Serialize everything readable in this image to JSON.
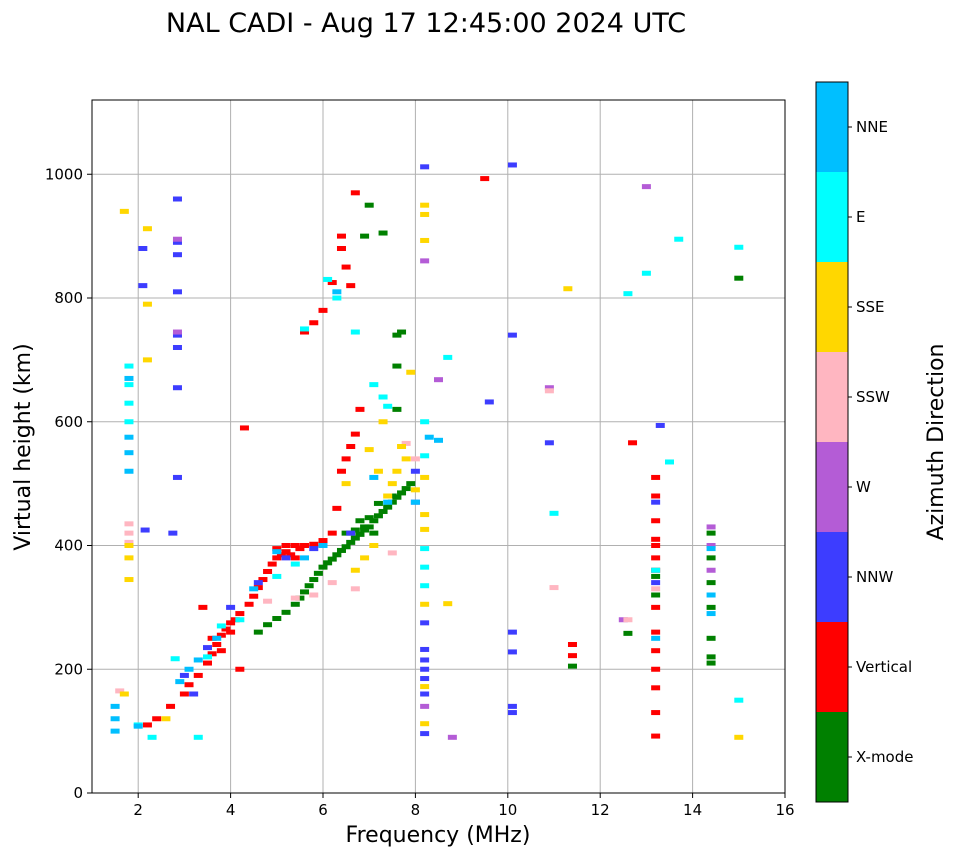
{
  "chart_data": {
    "type": "scatter",
    "title": "NAL CADI - Aug 17 12:45:00 2024 UTC",
    "xlabel": "Frequency (MHz)",
    "ylabel": "Virtual height (km)",
    "xlim": [
      1,
      16
    ],
    "ylim": [
      0,
      1120
    ],
    "xticks": [
      2,
      4,
      6,
      8,
      10,
      12,
      14,
      16
    ],
    "yticks": [
      0,
      200,
      400,
      600,
      800,
      1000
    ],
    "grid": true,
    "colorbar": {
      "label": "Azimuth Direction",
      "categories": [
        {
          "name": "X-mode",
          "color": "#008000"
        },
        {
          "name": "Vertical",
          "color": "#ff0000"
        },
        {
          "name": "NNW",
          "color": "#3d3dff"
        },
        {
          "name": "W",
          "color": "#b45cd6"
        },
        {
          "name": "SSW",
          "color": "#ffb6c1"
        },
        {
          "name": "SSE",
          "color": "#ffd700"
        },
        {
          "name": "E",
          "color": "#00ffff"
        },
        {
          "name": "NNE",
          "color": "#00bfff"
        }
      ]
    },
    "series": [
      {
        "name": "X-mode",
        "points": [
          [
            4.6,
            260
          ],
          [
            4.8,
            272
          ],
          [
            5.0,
            282
          ],
          [
            5.2,
            292
          ],
          [
            5.4,
            305
          ],
          [
            5.5,
            315
          ],
          [
            5.6,
            325
          ],
          [
            5.7,
            335
          ],
          [
            5.8,
            345
          ],
          [
            5.9,
            355
          ],
          [
            6.0,
            365
          ],
          [
            6.1,
            372
          ],
          [
            6.2,
            378
          ],
          [
            6.3,
            385
          ],
          [
            6.4,
            392
          ],
          [
            6.5,
            398
          ],
          [
            6.6,
            405
          ],
          [
            6.7,
            412
          ],
          [
            6.8,
            418
          ],
          [
            6.9,
            425
          ],
          [
            7.0,
            430
          ],
          [
            7.1,
            440
          ],
          [
            7.2,
            448
          ],
          [
            7.3,
            455
          ],
          [
            7.4,
            462
          ],
          [
            7.5,
            470
          ],
          [
            7.6,
            478
          ],
          [
            7.7,
            485
          ],
          [
            7.8,
            492
          ],
          [
            7.9,
            500
          ],
          [
            6.8,
            440
          ],
          [
            6.9,
            430
          ],
          [
            7.0,
            445
          ],
          [
            7.1,
            420
          ],
          [
            6.5,
            420
          ],
          [
            6.7,
            425
          ],
          [
            7.2,
            468
          ],
          [
            7.5,
            480
          ],
          [
            7.0,
            950
          ],
          [
            6.9,
            900
          ],
          [
            7.3,
            905
          ],
          [
            7.7,
            745
          ],
          [
            7.6,
            740
          ],
          [
            7.6,
            690
          ],
          [
            7.6,
            620
          ],
          [
            12.6,
            258
          ],
          [
            13.2,
            350
          ],
          [
            13.2,
            320
          ],
          [
            14.4,
            250
          ],
          [
            14.4,
            220
          ],
          [
            14.4,
            210
          ],
          [
            14.4,
            300
          ],
          [
            14.4,
            340
          ],
          [
            14.4,
            420
          ],
          [
            14.4,
            380
          ],
          [
            11.4,
            205
          ],
          [
            15.0,
            832
          ]
        ]
      },
      {
        "name": "Vertical",
        "points": [
          [
            2.2,
            110
          ],
          [
            2.4,
            120
          ],
          [
            2.7,
            140
          ],
          [
            3.0,
            160
          ],
          [
            3.1,
            175
          ],
          [
            3.3,
            190
          ],
          [
            3.5,
            210
          ],
          [
            3.6,
            225
          ],
          [
            3.7,
            240
          ],
          [
            3.8,
            255
          ],
          [
            3.9,
            265
          ],
          [
            4.0,
            275
          ],
          [
            4.1,
            280
          ],
          [
            4.2,
            290
          ],
          [
            4.4,
            305
          ],
          [
            4.5,
            318
          ],
          [
            4.6,
            332
          ],
          [
            4.7,
            345
          ],
          [
            4.8,
            358
          ],
          [
            4.9,
            370
          ],
          [
            5.0,
            380
          ],
          [
            5.1,
            385
          ],
          [
            5.2,
            390
          ],
          [
            5.3,
            385
          ],
          [
            5.4,
            380
          ],
          [
            5.5,
            395
          ],
          [
            5.6,
            400
          ],
          [
            5.8,
            402
          ],
          [
            6.0,
            408
          ],
          [
            6.2,
            420
          ],
          [
            6.3,
            460
          ],
          [
            6.4,
            520
          ],
          [
            6.5,
            540
          ],
          [
            6.6,
            560
          ],
          [
            6.7,
            580
          ],
          [
            6.8,
            620
          ],
          [
            4.3,
            590
          ],
          [
            6.4,
            880
          ],
          [
            6.4,
            900
          ],
          [
            6.5,
            850
          ],
          [
            6.7,
            970
          ],
          [
            6.6,
            820
          ],
          [
            6.2,
            825
          ],
          [
            6.0,
            780
          ],
          [
            5.8,
            760
          ],
          [
            5.6,
            745
          ],
          [
            3.4,
            300
          ],
          [
            3.6,
            250
          ],
          [
            3.8,
            230
          ],
          [
            4.0,
            260
          ],
          [
            4.2,
            200
          ],
          [
            5.0,
            395
          ],
          [
            5.2,
            400
          ],
          [
            5.4,
            400
          ],
          [
            9.5,
            993
          ],
          [
            11.4,
            240
          ],
          [
            11.4,
            222
          ],
          [
            12.7,
            566
          ],
          [
            13.2,
            510
          ],
          [
            13.2,
            480
          ],
          [
            13.2,
            440
          ],
          [
            13.2,
            400
          ],
          [
            13.2,
            380
          ],
          [
            13.2,
            360
          ],
          [
            13.2,
            300
          ],
          [
            13.2,
            260
          ],
          [
            13.2,
            230
          ],
          [
            13.2,
            200
          ],
          [
            13.2,
            170
          ],
          [
            13.2,
            130
          ],
          [
            13.2,
            92
          ],
          [
            13.2,
            410
          ]
        ]
      },
      {
        "name": "NNW",
        "points": [
          [
            2.1,
            880
          ],
          [
            2.1,
            820
          ],
          [
            2.85,
            960
          ],
          [
            2.85,
            890
          ],
          [
            2.85,
            870
          ],
          [
            2.85,
            810
          ],
          [
            2.85,
            740
          ],
          [
            2.85,
            720
          ],
          [
            2.85,
            655
          ],
          [
            2.85,
            510
          ],
          [
            2.15,
            425
          ],
          [
            2.75,
            420
          ],
          [
            3.0,
            190
          ],
          [
            3.2,
            160
          ],
          [
            3.5,
            235
          ],
          [
            4.0,
            300
          ],
          [
            4.6,
            340
          ],
          [
            5.2,
            380
          ],
          [
            5.8,
            395
          ],
          [
            6.6,
            420
          ],
          [
            8.2,
            1012
          ],
          [
            8.2,
            275
          ],
          [
            8.2,
            232
          ],
          [
            8.2,
            215
          ],
          [
            8.2,
            200
          ],
          [
            8.2,
            185
          ],
          [
            8.2,
            160
          ],
          [
            8.2,
            96
          ],
          [
            8.0,
            520
          ],
          [
            8.0,
            470
          ],
          [
            10.1,
            1015
          ],
          [
            10.1,
            740
          ],
          [
            9.6,
            632
          ],
          [
            10.1,
            260
          ],
          [
            10.1,
            228
          ],
          [
            10.1,
            140
          ],
          [
            10.1,
            130
          ],
          [
            10.9,
            566
          ],
          [
            13.3,
            594
          ],
          [
            13.2,
            470
          ],
          [
            13.2,
            340
          ]
        ]
      },
      {
        "name": "W",
        "points": [
          [
            2.85,
            745
          ],
          [
            2.85,
            895
          ],
          [
            8.2,
            860
          ],
          [
            8.5,
            668
          ],
          [
            8.8,
            90
          ],
          [
            8.2,
            140
          ],
          [
            12.5,
            280
          ],
          [
            13.0,
            980
          ],
          [
            10.9,
            655
          ],
          [
            14.4,
            430
          ],
          [
            14.4,
            400
          ],
          [
            14.4,
            360
          ]
        ]
      },
      {
        "name": "SSW",
        "points": [
          [
            1.8,
            435
          ],
          [
            1.8,
            420
          ],
          [
            1.8,
            405
          ],
          [
            1.6,
            165
          ],
          [
            4.8,
            310
          ],
          [
            5.4,
            315
          ],
          [
            5.8,
            320
          ],
          [
            6.2,
            340
          ],
          [
            6.7,
            330
          ],
          [
            7.5,
            388
          ],
          [
            7.8,
            565
          ],
          [
            8.0,
            540
          ],
          [
            12.6,
            280
          ],
          [
            10.9,
            650
          ],
          [
            11.0,
            332
          ],
          [
            13.2,
            330
          ]
        ]
      },
      {
        "name": "SSE",
        "points": [
          [
            1.7,
            940
          ],
          [
            2.2,
            912
          ],
          [
            2.2,
            790
          ],
          [
            2.2,
            700
          ],
          [
            1.8,
            400
          ],
          [
            1.8,
            380
          ],
          [
            1.8,
            345
          ],
          [
            1.7,
            160
          ],
          [
            2.6,
            120
          ],
          [
            6.5,
            500
          ],
          [
            6.7,
            360
          ],
          [
            6.9,
            380
          ],
          [
            7.0,
            555
          ],
          [
            7.1,
            400
          ],
          [
            7.2,
            520
          ],
          [
            7.3,
            600
          ],
          [
            7.4,
            480
          ],
          [
            7.5,
            500
          ],
          [
            7.6,
            520
          ],
          [
            7.7,
            560
          ],
          [
            7.8,
            540
          ],
          [
            8.0,
            490
          ],
          [
            7.9,
            680
          ],
          [
            8.2,
            935
          ],
          [
            8.2,
            893
          ],
          [
            8.2,
            950
          ],
          [
            8.2,
            510
          ],
          [
            8.2,
            450
          ],
          [
            8.2,
            426
          ],
          [
            8.2,
            305
          ],
          [
            8.2,
            172
          ],
          [
            8.2,
            112
          ],
          [
            8.7,
            306
          ],
          [
            11.3,
            815
          ],
          [
            15.0,
            90
          ]
        ]
      },
      {
        "name": "E",
        "points": [
          [
            1.8,
            690
          ],
          [
            1.8,
            660
          ],
          [
            1.8,
            630
          ],
          [
            1.8,
            600
          ],
          [
            2.0,
            110
          ],
          [
            2.3,
            90
          ],
          [
            2.8,
            217
          ],
          [
            3.3,
            90
          ],
          [
            3.5,
            220
          ],
          [
            3.8,
            270
          ],
          [
            4.2,
            280
          ],
          [
            5.0,
            350
          ],
          [
            5.4,
            370
          ],
          [
            5.6,
            750
          ],
          [
            6.1,
            830
          ],
          [
            6.3,
            800
          ],
          [
            6.7,
            745
          ],
          [
            7.4,
            625
          ],
          [
            7.3,
            640
          ],
          [
            7.1,
            660
          ],
          [
            8.2,
            600
          ],
          [
            8.2,
            545
          ],
          [
            8.2,
            395
          ],
          [
            8.2,
            365
          ],
          [
            8.2,
            335
          ],
          [
            8.7,
            704
          ],
          [
            11.0,
            452
          ],
          [
            12.6,
            807
          ],
          [
            13.0,
            840
          ],
          [
            13.7,
            895
          ],
          [
            13.5,
            535
          ],
          [
            15.0,
            882
          ],
          [
            15.0,
            150
          ],
          [
            13.2,
            360
          ]
        ]
      },
      {
        "name": "NNE",
        "points": [
          [
            1.8,
            670
          ],
          [
            1.8,
            575
          ],
          [
            1.8,
            550
          ],
          [
            1.8,
            520
          ],
          [
            1.5,
            140
          ],
          [
            1.5,
            120
          ],
          [
            1.5,
            100
          ],
          [
            2.0,
            108
          ],
          [
            2.9,
            180
          ],
          [
            3.1,
            200
          ],
          [
            3.3,
            215
          ],
          [
            3.7,
            250
          ],
          [
            4.5,
            330
          ],
          [
            5.0,
            390
          ],
          [
            5.6,
            380
          ],
          [
            6.0,
            400
          ],
          [
            6.3,
            810
          ],
          [
            7.1,
            510
          ],
          [
            7.4,
            470
          ],
          [
            8.0,
            470
          ],
          [
            8.3,
            575
          ],
          [
            8.5,
            570
          ],
          [
            14.4,
            320
          ],
          [
            14.4,
            290
          ],
          [
            14.4,
            395
          ],
          [
            13.2,
            250
          ]
        ]
      }
    ]
  }
}
